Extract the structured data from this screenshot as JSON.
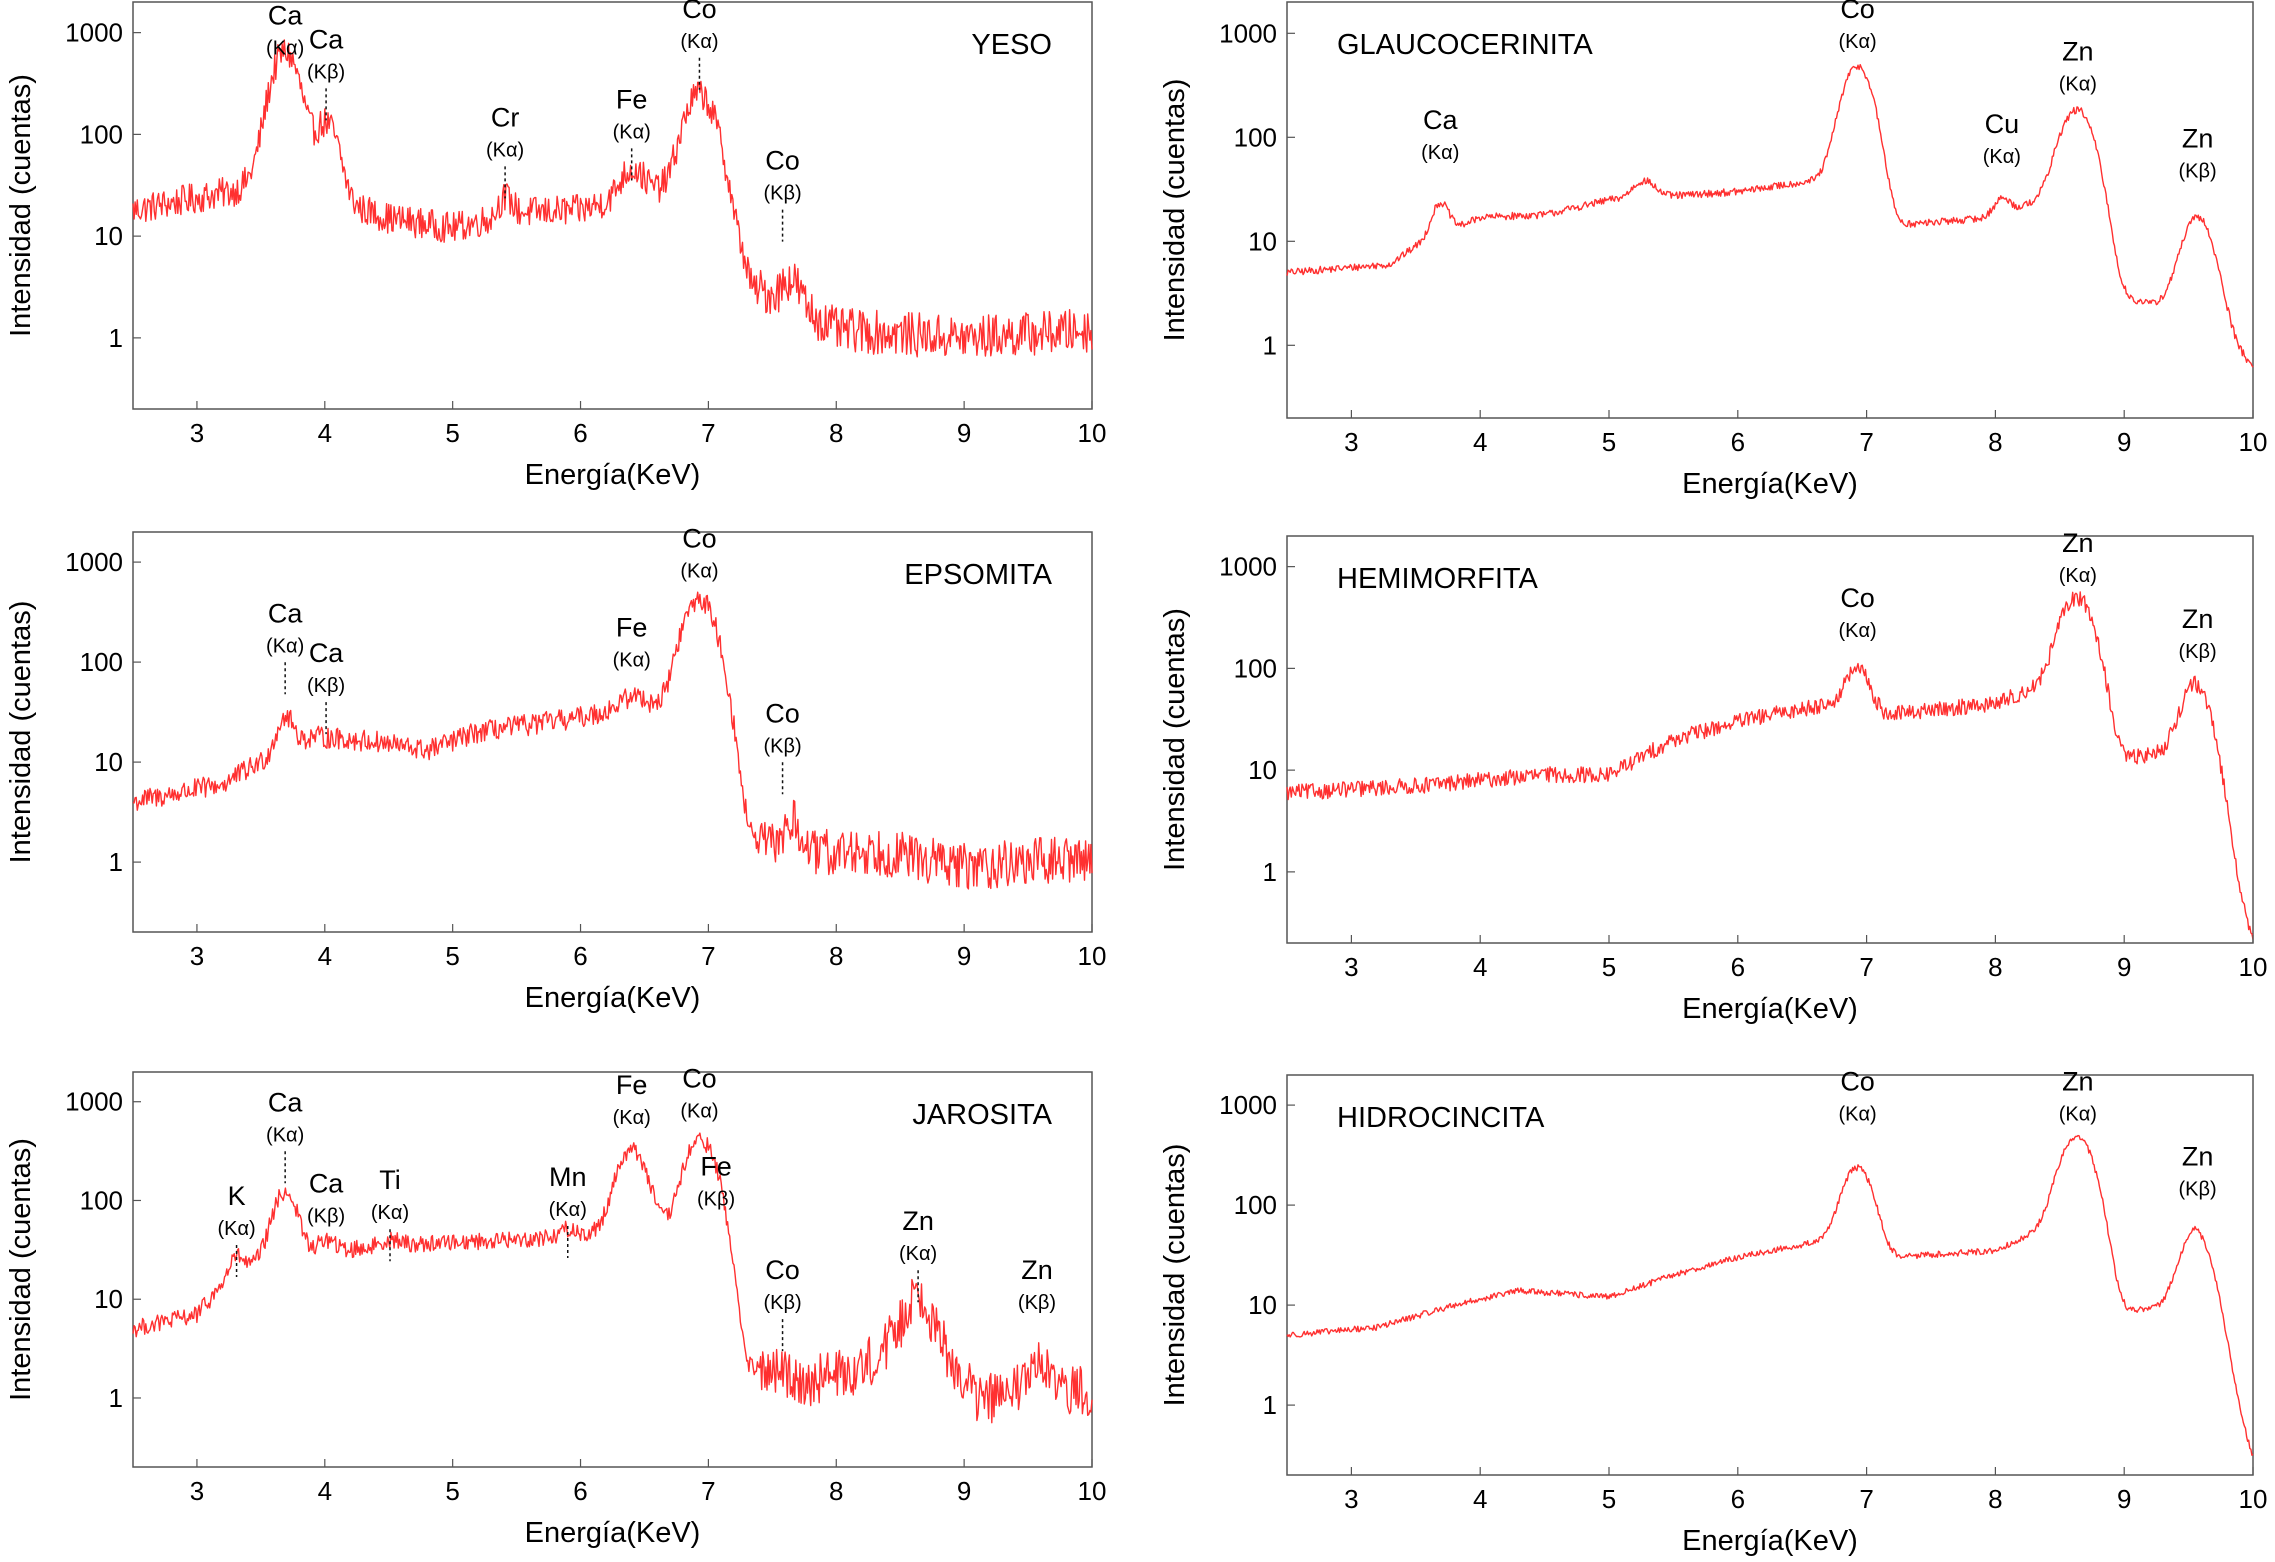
{
  "chart_data": [
    {
      "type": "line",
      "title": "YESO",
      "xlabel": "Energía(KeV)",
      "ylabel": "Intensidad (cuentas)",
      "xlim": [
        2.5,
        10
      ],
      "ylim": [
        0.2,
        2000
      ],
      "yscale": "log",
      "grid": false,
      "series_color": "#ff3030",
      "x_ticks": [
        3,
        4,
        5,
        6,
        7,
        8,
        9,
        10
      ],
      "y_ticks": [
        1,
        10,
        100,
        1000
      ],
      "noise": {
        "a": 0.35,
        "b": 0.5,
        "threshold": 7.4
      },
      "baseline": [
        [
          2.5,
          18
        ],
        [
          3.3,
          28
        ],
        [
          3.55,
          45
        ],
        [
          3.85,
          40
        ],
        [
          4.2,
          20
        ],
        [
          4.5,
          15
        ],
        [
          5.0,
          12
        ],
        [
          5.5,
          17
        ],
        [
          6.0,
          18
        ],
        [
          6.5,
          28
        ],
        [
          7.1,
          30
        ],
        [
          7.35,
          3
        ],
        [
          7.6,
          2.5
        ],
        [
          8.0,
          1.2
        ],
        [
          9.0,
          1.0
        ],
        [
          10.0,
          1.2
        ]
      ],
      "peaks": [
        {
          "x": 3.69,
          "height": 600,
          "width": 0.09
        },
        {
          "x": 4.01,
          "height": 100,
          "width": 0.08
        },
        {
          "x": 5.41,
          "height": 8,
          "width": 0.05
        },
        {
          "x": 6.4,
          "height": 20,
          "width": 0.08
        },
        {
          "x": 6.93,
          "height": 220,
          "width": 0.1
        },
        {
          "x": 7.65,
          "height": 1.5,
          "width": 0.06
        }
      ],
      "annotations": [
        {
          "text": "Ca",
          "sub": "(Kα)",
          "x": 3.69,
          "level": 1200,
          "tick": false
        },
        {
          "text": "Ca",
          "sub": "(Kβ)",
          "x": 4.01,
          "level": 700,
          "tick": true
        },
        {
          "text": "Cr",
          "sub": "(Kα)",
          "x": 5.41,
          "level": 120,
          "tick": true
        },
        {
          "text": "Fe",
          "sub": "(Kα)",
          "x": 6.4,
          "level": 180,
          "tick": true
        },
        {
          "text": "Co",
          "sub": "(Kα)",
          "x": 6.93,
          "level": 1400,
          "tick": true
        },
        {
          "text": "Co",
          "sub": "(Kβ)",
          "x": 7.58,
          "level": 45,
          "tick": true
        }
      ]
    },
    {
      "type": "line",
      "title": "GLAUCOCERINITA",
      "xlabel": "Energía(KeV)",
      "ylabel": "Intensidad (cuentas)",
      "xlim": [
        2.5,
        10
      ],
      "ylim": [
        0.2,
        2000
      ],
      "yscale": "log",
      "grid": false,
      "series_color": "#ff3030",
      "x_ticks": [
        3,
        4,
        5,
        6,
        7,
        8,
        9,
        10
      ],
      "y_ticks": [
        1,
        10,
        100,
        1000
      ],
      "noise": {
        "a": 0.08,
        "b": 0.1,
        "threshold": 9.8
      },
      "baseline": [
        [
          2.5,
          5
        ],
        [
          3.3,
          6
        ],
        [
          3.5,
          9
        ],
        [
          4.0,
          17
        ],
        [
          4.5,
          18
        ],
        [
          5.0,
          25
        ],
        [
          6.0,
          30
        ],
        [
          6.7,
          40
        ],
        [
          7.15,
          14
        ],
        [
          8.0,
          17
        ],
        [
          8.5,
          30
        ],
        [
          8.9,
          3
        ],
        [
          9.2,
          2.5
        ],
        [
          9.6,
          3
        ],
        [
          10.0,
          0.6
        ]
      ],
      "peaks": [
        {
          "x": 3.69,
          "height": 12,
          "width": 0.06
        },
        {
          "x": 5.27,
          "height": 12,
          "width": 0.08
        },
        {
          "x": 6.93,
          "height": 460,
          "width": 0.1
        },
        {
          "x": 8.05,
          "height": 8,
          "width": 0.06
        },
        {
          "x": 8.64,
          "height": 170,
          "width": 0.11
        },
        {
          "x": 9.57,
          "height": 14,
          "width": 0.1
        }
      ],
      "annotations": [
        {
          "text": "Ca",
          "sub": "(Kα)",
          "x": 3.69,
          "level": 120,
          "tick": false
        },
        {
          "text": "Co",
          "sub": "(Kα)",
          "x": 6.93,
          "level": 1400,
          "tick": false
        },
        {
          "text": "Cu",
          "sub": "(Kα)",
          "x": 8.05,
          "level": 110,
          "tick": false
        },
        {
          "text": "Zn",
          "sub": "(Kα)",
          "x": 8.64,
          "level": 550,
          "tick": false
        },
        {
          "text": "Zn",
          "sub": "(Kβ)",
          "x": 9.57,
          "level": 80,
          "tick": false
        }
      ]
    },
    {
      "type": "line",
      "title": "EPSOMITA",
      "xlabel": "Energía(KeV)",
      "ylabel": "Intensidad (cuentas)",
      "xlim": [
        2.5,
        10
      ],
      "ylim": [
        0.2,
        2000
      ],
      "yscale": "log",
      "grid": false,
      "series_color": "#ff3030",
      "x_ticks": [
        3,
        4,
        5,
        6,
        7,
        8,
        9,
        10
      ],
      "y_ticks": [
        1,
        10,
        100,
        1000
      ],
      "noise": {
        "a": 0.25,
        "b": 0.55,
        "threshold": 7.4
      },
      "baseline": [
        [
          2.5,
          4
        ],
        [
          3.2,
          6
        ],
        [
          3.5,
          10
        ],
        [
          3.9,
          18
        ],
        [
          4.4,
          16
        ],
        [
          4.8,
          13
        ],
        [
          5.2,
          20
        ],
        [
          6.0,
          28
        ],
        [
          6.5,
          40
        ],
        [
          7.05,
          20
        ],
        [
          7.25,
          1.6
        ],
        [
          7.8,
          1.2
        ],
        [
          8.3,
          1.3
        ],
        [
          9.0,
          0.9
        ],
        [
          10.0,
          1.1
        ]
      ],
      "peaks": [
        {
          "x": 3.69,
          "height": 15,
          "width": 0.06
        },
        {
          "x": 6.4,
          "height": 8,
          "width": 0.08
        },
        {
          "x": 6.93,
          "height": 400,
          "width": 0.11
        },
        {
          "x": 7.65,
          "height": 1.2,
          "width": 0.06
        }
      ],
      "annotations": [
        {
          "text": "Ca",
          "sub": "(Kα)",
          "x": 3.69,
          "level": 250,
          "tick": true
        },
        {
          "text": "Ca",
          "sub": "(Kβ)",
          "x": 4.01,
          "level": 100,
          "tick": true
        },
        {
          "text": "Fe",
          "sub": "(Kα)",
          "x": 6.4,
          "level": 180,
          "tick": false
        },
        {
          "text": "Co",
          "sub": "(Kα)",
          "x": 6.93,
          "level": 1400,
          "tick": false
        },
        {
          "text": "Co",
          "sub": "(Kβ)",
          "x": 7.58,
          "level": 25,
          "tick": true
        }
      ]
    },
    {
      "type": "line",
      "title": "HEMIMORFITA",
      "xlabel": "Energía(KeV)",
      "ylabel": "Intensidad (cuentas)",
      "xlim": [
        2.5,
        10
      ],
      "ylim": [
        0.2,
        2000
      ],
      "yscale": "log",
      "grid": false,
      "series_color": "#ff3030",
      "x_ticks": [
        3,
        4,
        5,
        6,
        7,
        8,
        9,
        10
      ],
      "y_ticks": [
        1,
        10,
        100,
        1000
      ],
      "noise": {
        "a": 0.18,
        "b": 0.12,
        "threshold": 9.8
      },
      "baseline": [
        [
          2.5,
          6
        ],
        [
          3.5,
          7
        ],
        [
          4.5,
          9
        ],
        [
          5.0,
          9
        ],
        [
          5.5,
          20
        ],
        [
          6.0,
          30
        ],
        [
          6.7,
          45
        ],
        [
          7.15,
          35
        ],
        [
          8.0,
          45
        ],
        [
          8.5,
          80
        ],
        [
          8.9,
          12
        ],
        [
          9.3,
          15
        ],
        [
          9.55,
          30
        ],
        [
          9.75,
          2
        ],
        [
          10.0,
          0.2
        ]
      ],
      "peaks": [
        {
          "x": 6.93,
          "height": 60,
          "width": 0.08
        },
        {
          "x": 8.64,
          "height": 450,
          "width": 0.11
        },
        {
          "x": 9.57,
          "height": 45,
          "width": 0.1
        }
      ],
      "annotations": [
        {
          "text": "Co",
          "sub": "(Kα)",
          "x": 6.93,
          "level": 400,
          "tick": false
        },
        {
          "text": "Zn",
          "sub": "(Kα)",
          "x": 8.64,
          "level": 1400,
          "tick": false
        },
        {
          "text": "Zn",
          "sub": "(Kβ)",
          "x": 9.57,
          "level": 250,
          "tick": false
        }
      ]
    },
    {
      "type": "line",
      "title": "JAROSITA",
      "xlabel": "Energía(KeV)",
      "ylabel": "Intensidad (cuentas)",
      "xlim": [
        2.5,
        10
      ],
      "ylim": [
        0.2,
        2000
      ],
      "yscale": "log",
      "grid": false,
      "series_color": "#ff3030",
      "x_ticks": [
        3,
        4,
        5,
        6,
        7,
        8,
        9,
        10
      ],
      "y_ticks": [
        1,
        10,
        100,
        1000
      ],
      "noise": {
        "a": 0.2,
        "b": 0.6,
        "threshold": 7.4
      },
      "baseline": [
        [
          2.5,
          5
        ],
        [
          3.0,
          7
        ],
        [
          3.2,
          14
        ],
        [
          3.5,
          25
        ],
        [
          4.0,
          30
        ],
        [
          4.5,
          35
        ],
        [
          5.0,
          38
        ],
        [
          5.5,
          40
        ],
        [
          6.0,
          45
        ],
        [
          6.6,
          50
        ],
        [
          7.0,
          40
        ],
        [
          7.3,
          2
        ],
        [
          7.8,
          1.5
        ],
        [
          8.2,
          2
        ],
        [
          8.45,
          4
        ],
        [
          8.85,
          3
        ],
        [
          9.1,
          1
        ],
        [
          10.0,
          1.2
        ]
      ],
      "peaks": [
        {
          "x": 3.31,
          "height": 10,
          "width": 0.05
        },
        {
          "x": 3.69,
          "height": 95,
          "width": 0.08
        },
        {
          "x": 4.01,
          "height": 10,
          "width": 0.06
        },
        {
          "x": 4.51,
          "height": 5,
          "width": 0.07
        },
        {
          "x": 5.9,
          "height": 8,
          "width": 0.05
        },
        {
          "x": 6.4,
          "height": 280,
          "width": 0.1
        },
        {
          "x": 6.93,
          "height": 360,
          "width": 0.1
        },
        {
          "x": 7.06,
          "height": 40,
          "width": 0.07
        },
        {
          "x": 8.64,
          "height": 8,
          "width": 0.08
        },
        {
          "x": 9.57,
          "height": 1,
          "width": 0.08
        }
      ],
      "annotations": [
        {
          "text": "K",
          "sub": "(Kα)",
          "x": 3.31,
          "level": 90,
          "tick": true
        },
        {
          "text": "Ca",
          "sub": "(Kα)",
          "x": 3.69,
          "level": 800,
          "tick": true
        },
        {
          "text": "Ca",
          "sub": "(Kβ)",
          "x": 4.01,
          "level": 120,
          "tick": false
        },
        {
          "text": "Ti",
          "sub": "(Kα)",
          "x": 4.51,
          "level": 130,
          "tick": true
        },
        {
          "text": "Mn",
          "sub": "(Kα)",
          "x": 5.9,
          "level": 140,
          "tick": true
        },
        {
          "text": "Fe",
          "sub": "(Kα)",
          "x": 6.4,
          "level": 1200,
          "tick": false
        },
        {
          "text": "Co",
          "sub": "(Kα)",
          "x": 6.93,
          "level": 1400,
          "tick": false
        },
        {
          "text": "Fe",
          "sub": "(Kβ)",
          "x": 7.06,
          "level": 180,
          "tick": false
        },
        {
          "text": "Co",
          "sub": "(Kβ)",
          "x": 7.58,
          "level": 16,
          "tick": true
        },
        {
          "text": "Zn",
          "sub": "(Kα)",
          "x": 8.64,
          "level": 50,
          "tick": true
        },
        {
          "text": "Zn",
          "sub": "(Kβ)",
          "x": 9.57,
          "level": 16,
          "tick": false
        }
      ]
    },
    {
      "type": "line",
      "title": "HIDROCINCITA",
      "xlabel": "Energía(KeV)",
      "ylabel": "Intensidad (cuentas)",
      "xlim": [
        2.5,
        10
      ],
      "ylim": [
        0.2,
        2000
      ],
      "yscale": "log",
      "grid": false,
      "series_color": "#ff3030",
      "x_ticks": [
        3,
        4,
        5,
        6,
        7,
        8,
        9,
        10
      ],
      "y_ticks": [
        1,
        10,
        100,
        1000
      ],
      "noise": {
        "a": 0.07,
        "b": 0.08,
        "threshold": 9.8
      },
      "baseline": [
        [
          2.5,
          5
        ],
        [
          3.2,
          6
        ],
        [
          3.8,
          10
        ],
        [
          4.3,
          14
        ],
        [
          5.0,
          12
        ],
        [
          5.5,
          20
        ],
        [
          6.0,
          30
        ],
        [
          6.7,
          45
        ],
        [
          7.15,
          30
        ],
        [
          8.0,
          35
        ],
        [
          8.5,
          70
        ],
        [
          8.9,
          8
        ],
        [
          9.3,
          10
        ],
        [
          9.55,
          25
        ],
        [
          9.8,
          2
        ],
        [
          10.0,
          0.3
        ]
      ],
      "peaks": [
        {
          "x": 6.93,
          "height": 200,
          "width": 0.1
        },
        {
          "x": 8.64,
          "height": 450,
          "width": 0.11
        },
        {
          "x": 9.57,
          "height": 35,
          "width": 0.1
        }
      ],
      "annotations": [
        {
          "text": "Co",
          "sub": "(Kα)",
          "x": 6.93,
          "level": 1400,
          "tick": false
        },
        {
          "text": "Zn",
          "sub": "(Kα)",
          "x": 8.64,
          "level": 1400,
          "tick": false
        },
        {
          "text": "Zn",
          "sub": "(Kβ)",
          "x": 9.57,
          "level": 250,
          "tick": false
        }
      ]
    }
  ]
}
